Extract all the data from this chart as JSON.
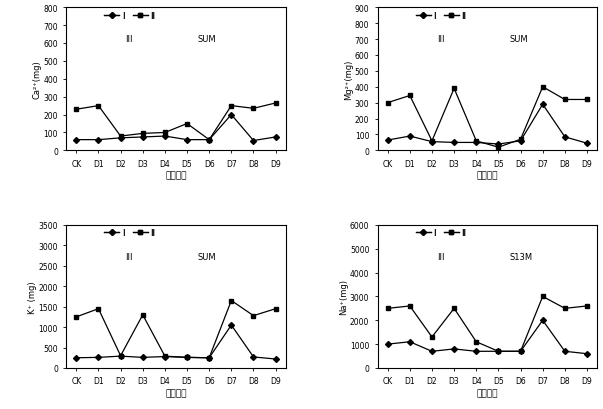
{
  "categories": [
    "CK",
    "D1",
    "D2",
    "D3",
    "D4",
    "D5",
    "D6",
    "D7",
    "D8",
    "D9"
  ],
  "ca_I": [
    60,
    60,
    70,
    75,
    80,
    60,
    60,
    200,
    55,
    75
  ],
  "ca_II": [
    230,
    250,
    80,
    95,
    100,
    150,
    60,
    250,
    235,
    265
  ],
  "mg_I": [
    65,
    90,
    55,
    50,
    50,
    40,
    60,
    290,
    85,
    45
  ],
  "mg_II": [
    300,
    345,
    60,
    390,
    60,
    20,
    70,
    400,
    320,
    320
  ],
  "k_I": [
    250,
    260,
    290,
    260,
    280,
    260,
    250,
    1050,
    270,
    220
  ],
  "k_II": [
    1250,
    1450,
    300,
    1300,
    290,
    260,
    250,
    1650,
    1280,
    1450
  ],
  "na_I": [
    1000,
    1100,
    700,
    800,
    700,
    700,
    700,
    2000,
    700,
    600
  ],
  "na_II": [
    2500,
    2600,
    1300,
    2500,
    1100,
    700,
    700,
    3000,
    2500,
    2600
  ],
  "ylabel_ca": "Ca²⁺(mg)",
  "ylabel_mg": "Mg²⁺(mg)",
  "ylabel_k": "K⁺ (mg)",
  "ylabel_na": "Na⁺(mg)",
  "xlabel": "不同配方",
  "ylim_ca": [
    0,
    800
  ],
  "ylim_mg": [
    0,
    900
  ],
  "ylim_k": [
    0,
    3500
  ],
  "ylim_na": [
    0,
    6000
  ],
  "yticks_ca": [
    0,
    100,
    200,
    300,
    400,
    500,
    600,
    700,
    800
  ],
  "yticks_mg": [
    0,
    100,
    200,
    300,
    400,
    500,
    600,
    700,
    800,
    900
  ],
  "yticks_k": [
    0,
    500,
    1000,
    1500,
    2000,
    2500,
    3000,
    3500
  ],
  "yticks_na": [
    0,
    1000,
    2000,
    3000,
    4000,
    5000,
    6000
  ],
  "na_legend_sum": "S13M"
}
